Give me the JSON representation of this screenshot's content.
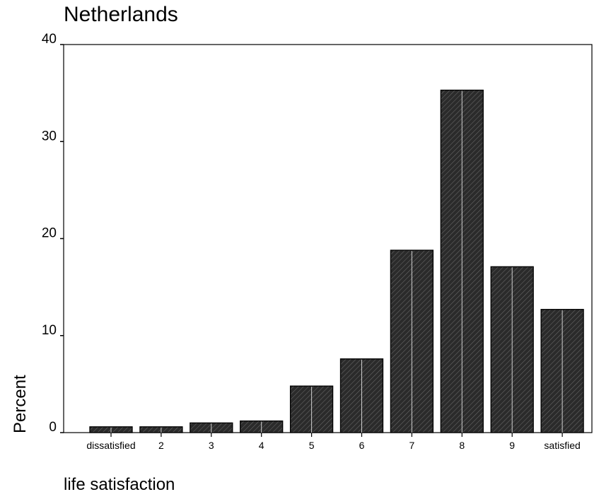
{
  "chart_data": {
    "type": "bar",
    "title": "Netherlands",
    "xlabel": "life satisfaction",
    "ylabel": "Percent",
    "categories": [
      "dissatisfied",
      "2",
      "3",
      "4",
      "5",
      "6",
      "7",
      "8",
      "9",
      "satisfied"
    ],
    "values": [
      0.6,
      0.6,
      1.0,
      1.2,
      4.8,
      7.6,
      18.8,
      35.3,
      17.1,
      12.7
    ],
    "ylim": [
      0,
      40
    ],
    "yticks": [
      0,
      10,
      20,
      30,
      40
    ],
    "grid": false,
    "bar_color": "#2b2b2b",
    "bar_border_color": "#000000",
    "background": "#ffffff"
  }
}
